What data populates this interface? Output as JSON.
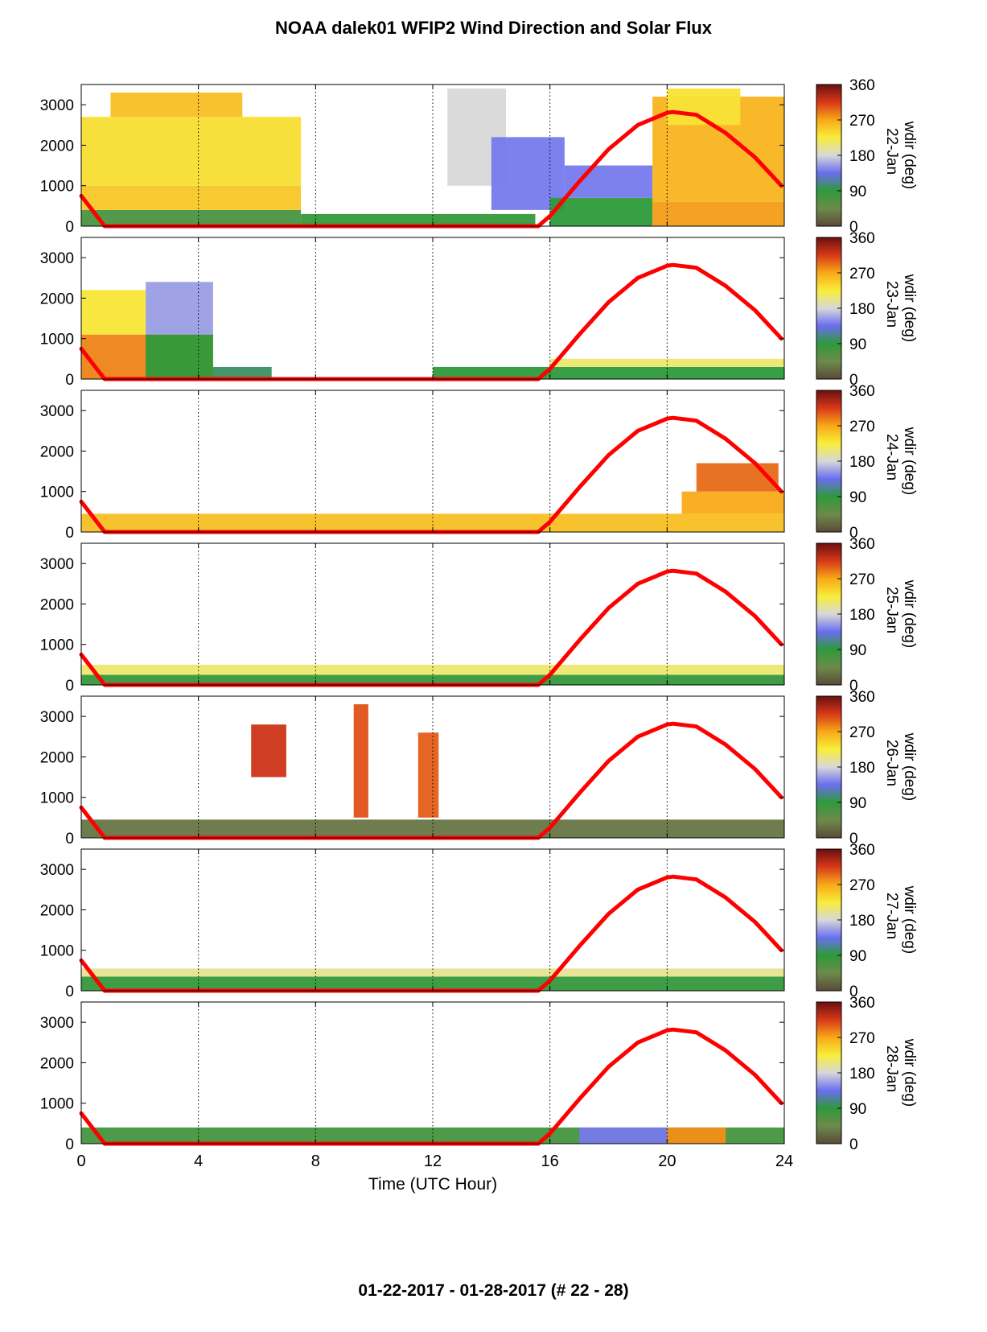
{
  "title": "NOAA dalek01 WFIP2 Wind Direction and Solar Flux",
  "footer": "01-22-2017 - 01-28-2017   (# 22 - 28)",
  "chart_data": {
    "type": "heatmap",
    "xlabel": "Time (UTC Hour)",
    "xlim": [
      0,
      24
    ],
    "xticks": [
      0,
      4,
      8,
      12,
      16,
      20,
      24
    ],
    "ylim": [
      0,
      3500
    ],
    "yticks": [
      0,
      1000,
      2000,
      3000
    ],
    "colorbar_label": "wdir (deg)",
    "colorbar_ticks": [
      0,
      90,
      180,
      270,
      360
    ],
    "colormap_stops": [
      {
        "value": 0,
        "color": "#5a4a3a"
      },
      {
        "value": 45,
        "color": "#6e8a4a"
      },
      {
        "value": 90,
        "color": "#2e9a3a"
      },
      {
        "value": 135,
        "color": "#6a6ef0"
      },
      {
        "value": 180,
        "color": "#d8d8d8"
      },
      {
        "value": 225,
        "color": "#f8ee3a"
      },
      {
        "value": 270,
        "color": "#f8a818"
      },
      {
        "value": 315,
        "color": "#d83818"
      },
      {
        "value": 360,
        "color": "#6a1010"
      }
    ],
    "solar_flux_line_color": "#ff0000",
    "solar_flux_curve": {
      "x": [
        0,
        0.8,
        15.6,
        16,
        17,
        18,
        19,
        20,
        20.2,
        21,
        22,
        23,
        23.9
      ],
      "y": [
        750,
        0,
        0,
        250,
        1100,
        1900,
        2500,
        2800,
        2820,
        2750,
        2300,
        1700,
        1000
      ]
    },
    "panels": [
      {
        "date": "22-Jan",
        "blocks": [
          {
            "x": [
              0,
              7.5
            ],
            "y": [
              0,
              400
            ],
            "dir": 70
          },
          {
            "x": [
              0,
              7.5
            ],
            "y": [
              400,
              1000
            ],
            "dir": 250
          },
          {
            "x": [
              0,
              7.5
            ],
            "y": [
              1000,
              2700
            ],
            "dir": 235
          },
          {
            "x": [
              1,
              5.5
            ],
            "y": [
              2700,
              3300
            ],
            "dir": 255
          },
          {
            "x": [
              7.5,
              15.5
            ],
            "y": [
              0,
              300
            ],
            "dir": 85
          },
          {
            "x": [
              12.5,
              14.5
            ],
            "y": [
              1000,
              3400
            ],
            "dir": 180
          },
          {
            "x": [
              14,
              16.5
            ],
            "y": [
              400,
              2200
            ],
            "dir": 140
          },
          {
            "x": [
              16,
              19.5
            ],
            "y": [
              0,
              700
            ],
            "dir": 90
          },
          {
            "x": [
              16.5,
              19.5
            ],
            "y": [
              700,
              1500
            ],
            "dir": 140
          },
          {
            "x": [
              19.5,
              24
            ],
            "y": [
              0,
              600
            ],
            "dir": 275
          },
          {
            "x": [
              19.5,
              24
            ],
            "y": [
              600,
              3200
            ],
            "dir": 262
          },
          {
            "x": [
              20,
              22.5
            ],
            "y": [
              2500,
              3400
            ],
            "dir": 232
          }
        ]
      },
      {
        "date": "23-Jan",
        "blocks": [
          {
            "x": [
              0,
              4.5
            ],
            "y": [
              0,
              1100
            ],
            "dir": 285
          },
          {
            "x": [
              0,
              2.2
            ],
            "y": [
              1100,
              2200
            ],
            "dir": 230
          },
          {
            "x": [
              2.2,
              4.5
            ],
            "y": [
              0,
              1100
            ],
            "dir": 90
          },
          {
            "x": [
              2.2,
              4.5
            ],
            "y": [
              1100,
              2400
            ],
            "dir": 155
          },
          {
            "x": [
              4.5,
              6.5
            ],
            "y": [
              0,
              300
            ],
            "dir": 100
          },
          {
            "x": [
              12,
              24
            ],
            "y": [
              0,
              300
            ],
            "dir": 90
          },
          {
            "x": [
              16,
              24
            ],
            "y": [
              300,
              500
            ],
            "dir": 210
          }
        ]
      },
      {
        "date": "24-Jan",
        "blocks": [
          {
            "x": [
              0,
              24
            ],
            "y": [
              0,
              450
            ],
            "dir": 255
          },
          {
            "x": [
              20.5,
              24
            ],
            "y": [
              450,
              1000
            ],
            "dir": 268
          },
          {
            "x": [
              21,
              23.8
            ],
            "y": [
              1000,
              1700
            ],
            "dir": 295
          }
        ]
      },
      {
        "date": "25-Jan",
        "blocks": [
          {
            "x": [
              0,
              24
            ],
            "y": [
              0,
              250
            ],
            "dir": 85
          },
          {
            "x": [
              0,
              24
            ],
            "y": [
              250,
              500
            ],
            "dir": 210
          }
        ]
      },
      {
        "date": "26-Jan",
        "blocks": [
          {
            "x": [
              0,
              24
            ],
            "y": [
              0,
              450
            ],
            "dir": 30
          },
          {
            "x": [
              5.8,
              7
            ],
            "y": [
              1500,
              2800
            ],
            "dir": 320
          },
          {
            "x": [
              9.3,
              9.8
            ],
            "y": [
              500,
              3300
            ],
            "dir": 305
          },
          {
            "x": [
              11.5,
              12.2
            ],
            "y": [
              500,
              2600
            ],
            "dir": 300
          }
        ]
      },
      {
        "date": "27-Jan",
        "blocks": [
          {
            "x": [
              0,
              24
            ],
            "y": [
              0,
              350
            ],
            "dir": 85
          },
          {
            "x": [
              0,
              24
            ],
            "y": [
              350,
              550
            ],
            "dir": 200
          }
        ]
      },
      {
        "date": "28-Jan",
        "blocks": [
          {
            "x": [
              0,
              24
            ],
            "y": [
              0,
              400
            ],
            "dir": 75
          },
          {
            "x": [
              17,
              20
            ],
            "y": [
              0,
              400
            ],
            "dir": 140
          },
          {
            "x": [
              20,
              22
            ],
            "y": [
              0,
              400
            ],
            "dir": 280
          }
        ]
      }
    ]
  }
}
